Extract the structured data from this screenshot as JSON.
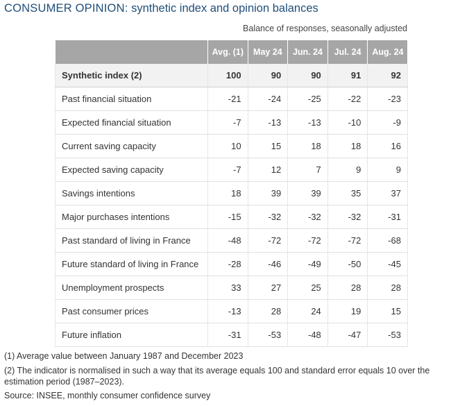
{
  "title_bold": "CONSUMER OPINION:",
  "title_rest": " synthetic index and opinion balances",
  "subtitle": "Balance of responses, seasonally adjusted",
  "columns": [
    "Avg. (1)",
    "May 24",
    "Jun. 24",
    "Jul. 24",
    "Aug. 24"
  ],
  "rows": [
    {
      "label": "Synthetic index (2)",
      "values": [
        "100",
        "90",
        "90",
        "91",
        "92"
      ]
    },
    {
      "label": "Past financial situation",
      "values": [
        "-21",
        "-24",
        "-25",
        "-22",
        "-23"
      ]
    },
    {
      "label": "Expected financial situation",
      "values": [
        "-7",
        "-13",
        "-13",
        "-10",
        "-9"
      ]
    },
    {
      "label": "Current saving capacity",
      "values": [
        "10",
        "15",
        "18",
        "18",
        "16"
      ]
    },
    {
      "label": "Expected saving capacity",
      "values": [
        "-7",
        "12",
        "7",
        "9",
        "9"
      ]
    },
    {
      "label": "Savings intentions",
      "values": [
        "18",
        "39",
        "39",
        "35",
        "37"
      ]
    },
    {
      "label": "Major purchases intentions",
      "values": [
        "-15",
        "-32",
        "-32",
        "-32",
        "-31"
      ]
    },
    {
      "label": "Past standard of living in France",
      "values": [
        "-48",
        "-72",
        "-72",
        "-72",
        "-68"
      ]
    },
    {
      "label": "Future standard of living in France",
      "values": [
        "-28",
        "-46",
        "-49",
        "-50",
        "-45"
      ]
    },
    {
      "label": "Unemployment prospects",
      "values": [
        "33",
        "27",
        "25",
        "28",
        "28"
      ]
    },
    {
      "label": "Past consumer prices",
      "values": [
        "-13",
        "28",
        "24",
        "19",
        "15"
      ]
    },
    {
      "label": "Future inflation",
      "values": [
        "-31",
        "-53",
        "-48",
        "-47",
        "-53"
      ]
    }
  ],
  "notes": {
    "note1": "(1) Average value between January 1987 and December 2023",
    "note2": "(2) The indicator is normalised in such a way that its average equals 100 and standard error equals 10 over the estimation period (1987–2023).",
    "source": "Source: INSEE, monthly consumer confidence survey"
  },
  "colors": {
    "title": "#1f4e79",
    "header_bg": "#a6a6a6"
  }
}
